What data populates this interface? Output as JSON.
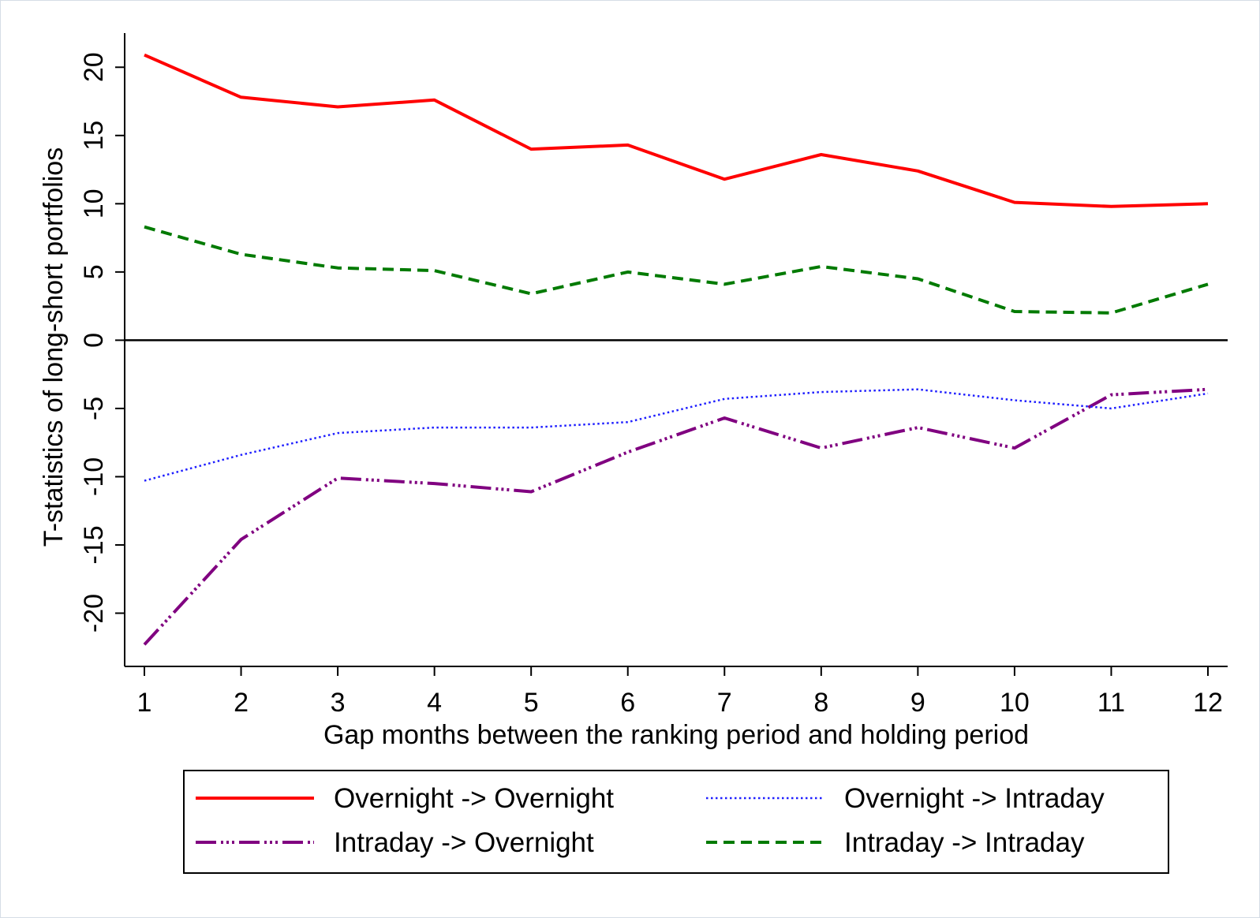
{
  "chart_data": {
    "type": "line",
    "xlabel": "Gap months between the ranking period and holding period",
    "ylabel": "T-statistics of long-short portfolios",
    "x": [
      1,
      2,
      3,
      4,
      5,
      6,
      7,
      8,
      9,
      10,
      11,
      12
    ],
    "xlim": [
      0.8,
      12.2
    ],
    "ylim": [
      -23.9,
      22.5
    ],
    "x_ticks": [
      "1",
      "2",
      "3",
      "4",
      "5",
      "6",
      "7",
      "8",
      "9",
      "10",
      "11",
      "12"
    ],
    "y_ticks": [
      20,
      15,
      10,
      5,
      0,
      -5,
      -10,
      -15,
      -20
    ],
    "y_tick_labels": [
      "20",
      "15",
      "10",
      "5",
      "0",
      "-5",
      "-10",
      "-15",
      "-20"
    ],
    "reference_line_y": 0,
    "grid": false,
    "legend_position": "bottom",
    "series": [
      {
        "name": "Overnight -> Overnight",
        "color": "#ff0000",
        "style": "solid",
        "values": [
          20.9,
          17.8,
          17.1,
          17.6,
          14.0,
          14.3,
          11.8,
          13.6,
          12.4,
          10.1,
          9.8,
          10.0
        ]
      },
      {
        "name": "Overnight -> Intraday",
        "color": "#1f1fff",
        "style": "dotted",
        "values": [
          -10.3,
          -8.4,
          -6.8,
          -6.4,
          -6.4,
          -6.0,
          -4.3,
          -3.8,
          -3.6,
          -4.4,
          -5.0,
          -3.9
        ]
      },
      {
        "name": "Intraday -> Overnight",
        "color": "#800080",
        "style": "dashdot",
        "values": [
          -22.3,
          -14.6,
          -10.1,
          -10.5,
          -11.1,
          -8.2,
          -5.7,
          -7.9,
          -6.4,
          -7.9,
          -4.0,
          -3.6
        ]
      },
      {
        "name": "Intraday -> Intraday",
        "color": "#007a00",
        "style": "dashed",
        "values": [
          8.3,
          6.3,
          5.3,
          5.1,
          3.4,
          5.0,
          4.1,
          5.4,
          4.5,
          2.1,
          2.0,
          4.1
        ]
      }
    ]
  }
}
